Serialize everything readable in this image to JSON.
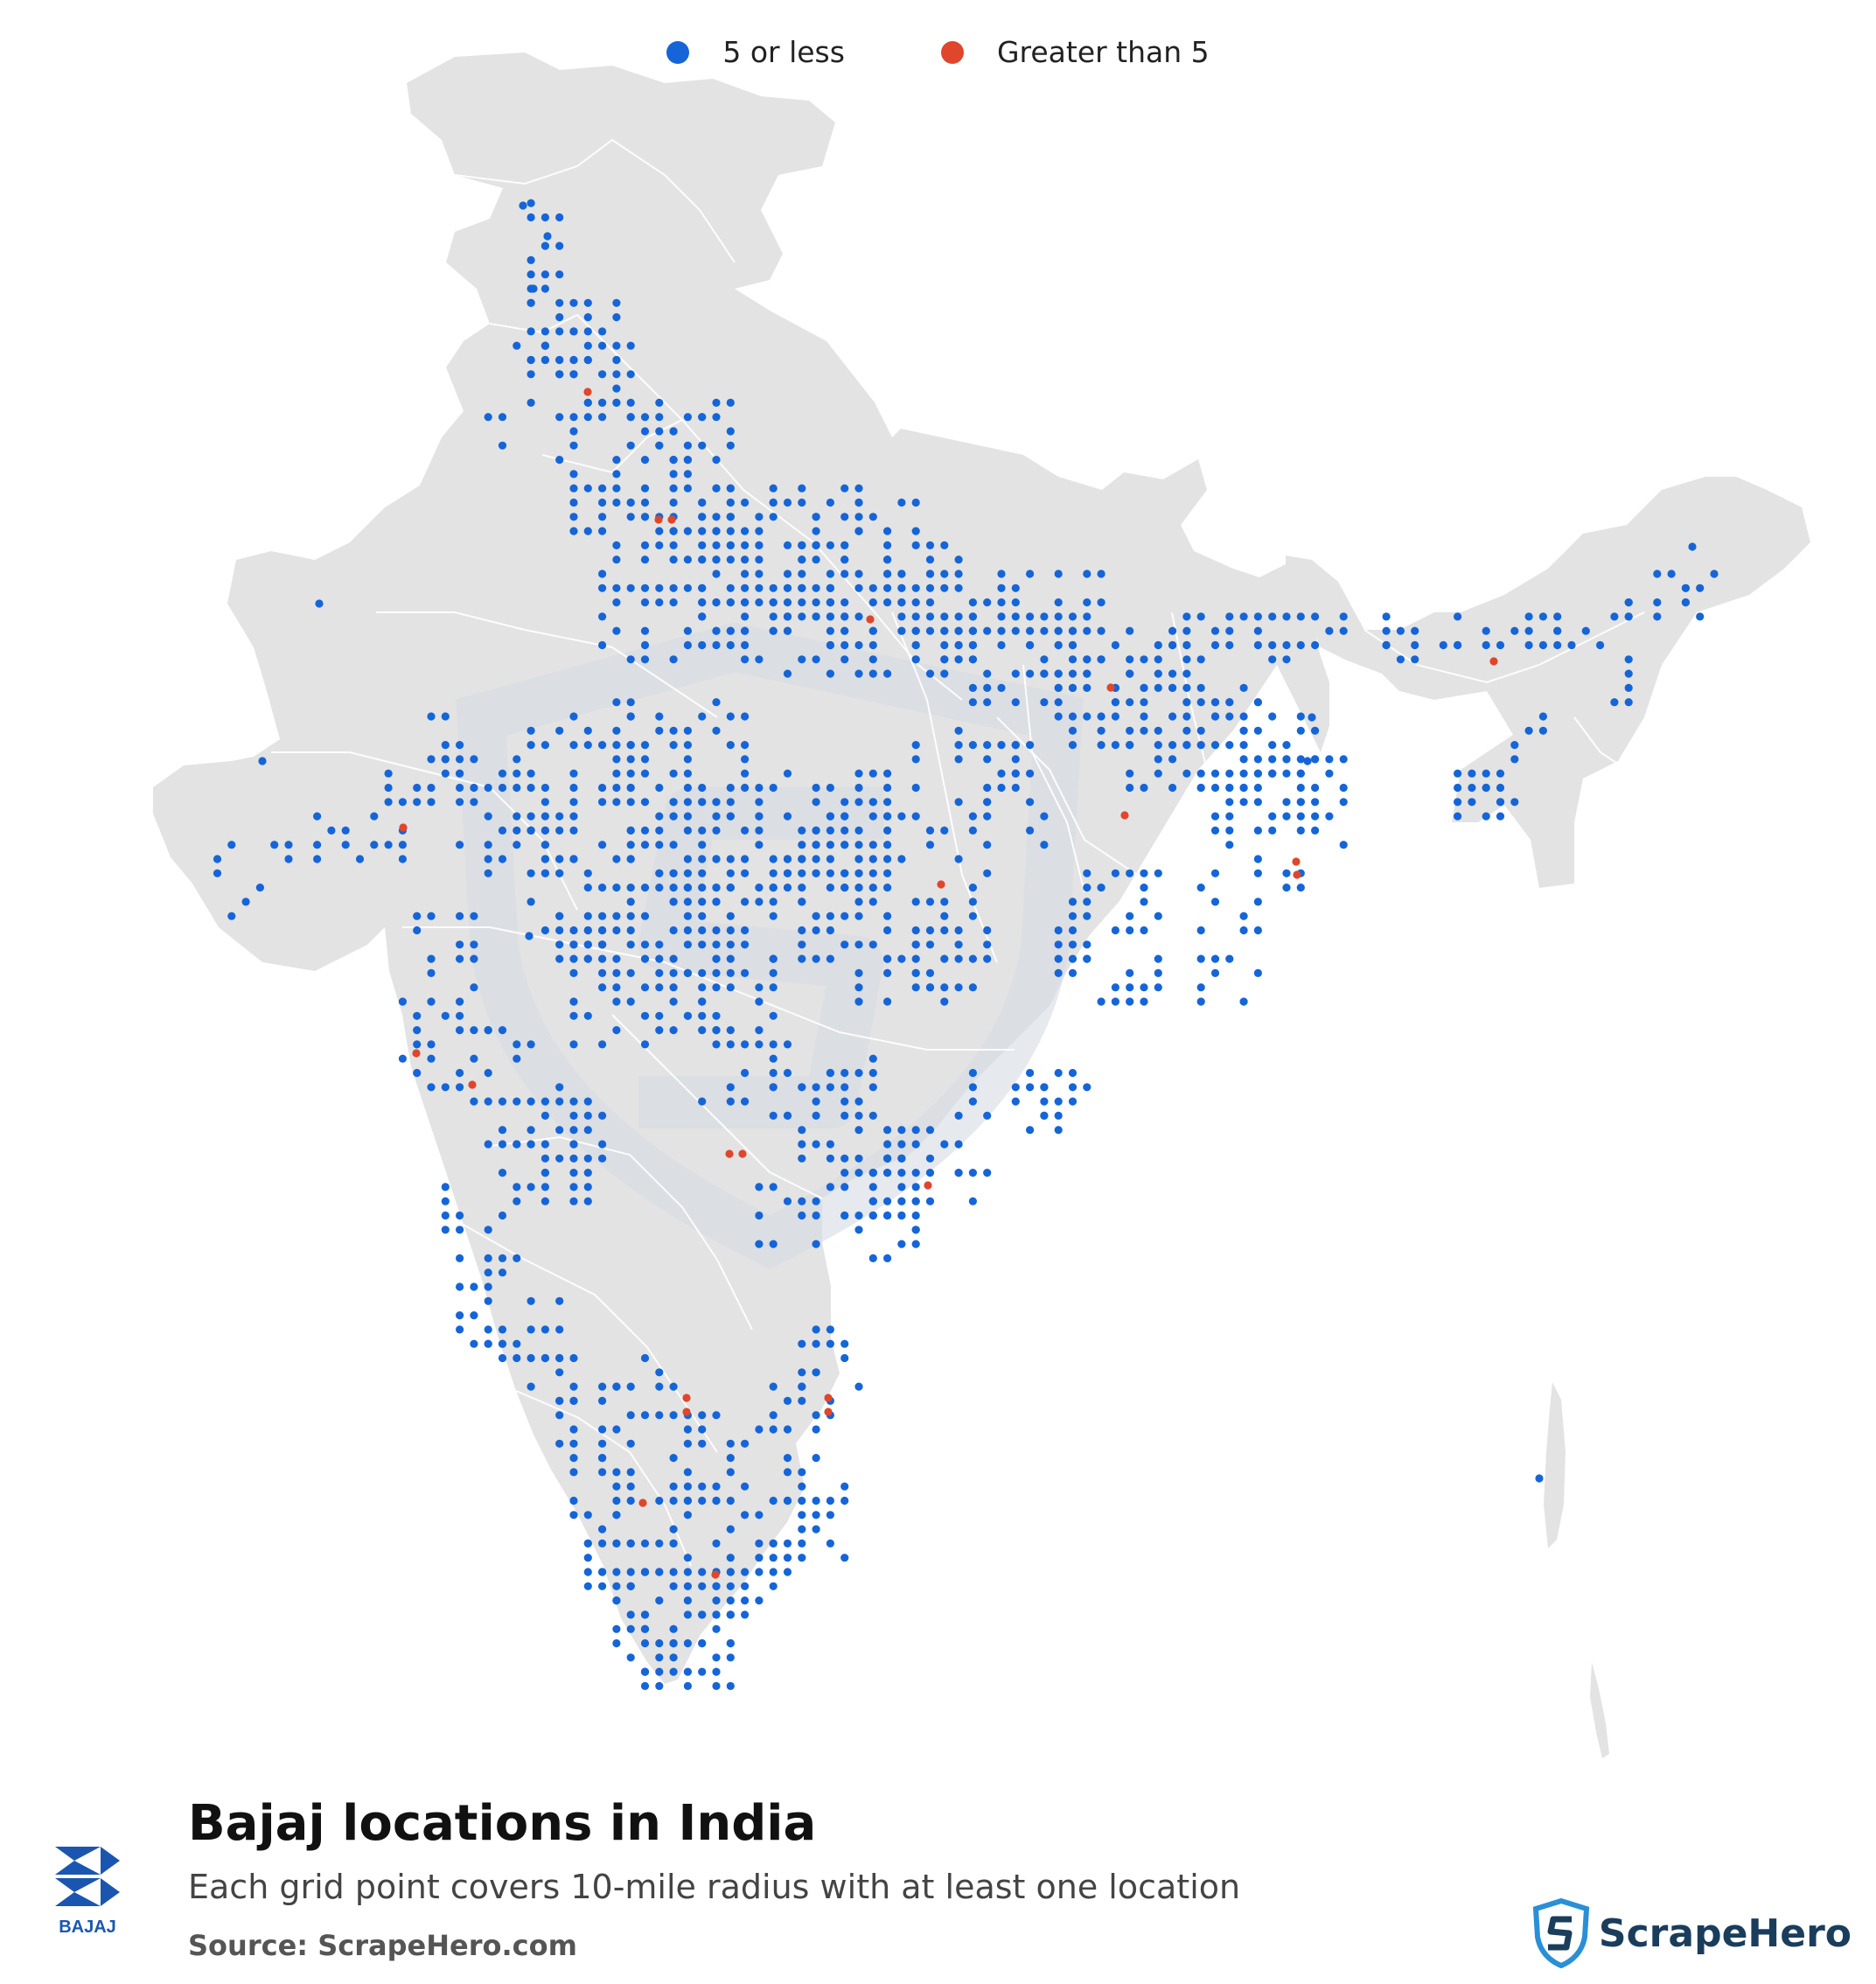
{
  "legend": {
    "items": [
      {
        "label": "5 or less",
        "color": "#1565d8"
      },
      {
        "label": "Greater than 5",
        "color": "#e0462b"
      }
    ]
  },
  "title": "Bajaj locations in India",
  "subtitle": "Each grid point covers 10-mile radius with at least one location",
  "source": "Source: ScrapeHero.com",
  "brand_logo_text": "BAJAJ",
  "publisher_name": "ScrapeHero",
  "colors": {
    "land": "#e3e3e3",
    "border": "#ffffff",
    "watermark": "#d5dbe2"
  },
  "icons": {
    "brand": "bajaj-logo-icon",
    "publisher": "scrapehero-shield-icon"
  },
  "dot_clusters": [
    {
      "region": "Jammu & Kashmir",
      "category": "5 or less",
      "count": 4
    },
    {
      "region": "Punjab / Haryana / Delhi",
      "category": "5 or less",
      "count": 70
    },
    {
      "region": "Delhi NCR",
      "category": "Greater than 5",
      "count": 3
    },
    {
      "region": "Uttar Pradesh",
      "category": "5 or less",
      "count": 110
    },
    {
      "region": "Uttar Pradesh",
      "category": "Greater than 5",
      "count": 1
    },
    {
      "region": "Bihar",
      "category": "5 or less",
      "count": 60
    },
    {
      "region": "Bihar",
      "category": "Greater than 5",
      "count": 1
    },
    {
      "region": "West Bengal",
      "category": "5 or less",
      "count": 45
    },
    {
      "region": "West Bengal",
      "category": "Greater than 5",
      "count": 2
    },
    {
      "region": "Rajasthan",
      "category": "5 or less",
      "count": 35
    },
    {
      "region": "Gujarat",
      "category": "5 or less",
      "count": 40
    },
    {
      "region": "Gujarat",
      "category": "Greater than 5",
      "count": 1
    },
    {
      "region": "Madhya Pradesh",
      "category": "5 or less",
      "count": 70
    },
    {
      "region": "Madhya Pradesh",
      "category": "Greater than 5",
      "count": 1
    },
    {
      "region": "Maharashtra",
      "category": "5 or less",
      "count": 75
    },
    {
      "region": "Maharashtra",
      "category": "Greater than 5",
      "count": 2
    },
    {
      "region": "Chhattisgarh",
      "category": "5 or less",
      "count": 25
    },
    {
      "region": "Chhattisgarh",
      "category": "Greater than 5",
      "count": 1
    },
    {
      "region": "Odisha",
      "category": "5 or less",
      "count": 30
    },
    {
      "region": "Telangana",
      "category": "5 or less",
      "count": 45
    },
    {
      "region": "Telangana",
      "category": "Greater than 5",
      "count": 2
    },
    {
      "region": "Andhra Pradesh",
      "category": "5 or less",
      "count": 70
    },
    {
      "region": "Andhra Pradesh",
      "category": "Greater than 5",
      "count": 1
    },
    {
      "region": "Karnataka",
      "category": "5 or less",
      "count": 65
    },
    {
      "region": "Karnataka",
      "category": "Greater than 5",
      "count": 2
    },
    {
      "region": "Tamil Nadu / Kerala",
      "category": "5 or less",
      "count": 110
    },
    {
      "region": "Tamil Nadu",
      "category": "Greater than 5",
      "count": 4
    },
    {
      "region": "Northeast",
      "category": "5 or less",
      "count": 40
    },
    {
      "region": "Assam",
      "category": "Greater than 5",
      "count": 1
    },
    {
      "region": "Andaman Islands",
      "category": "5 or less",
      "count": 1
    }
  ]
}
